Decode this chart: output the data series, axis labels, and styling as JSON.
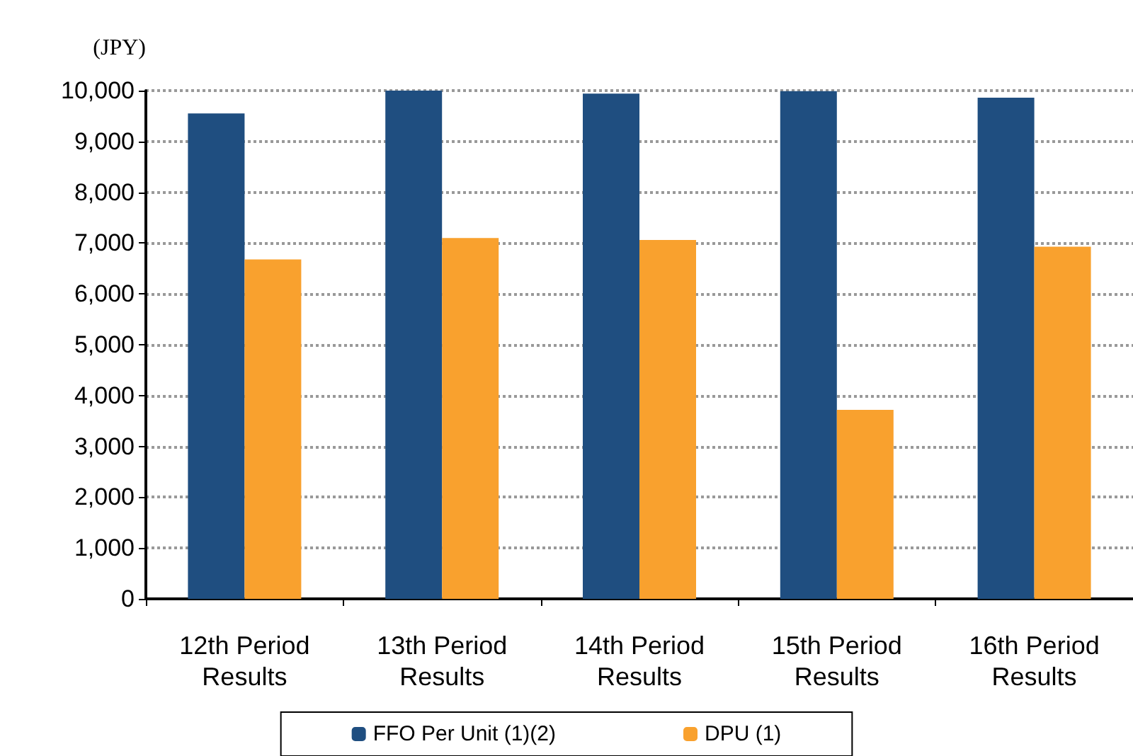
{
  "chart_data": {
    "type": "bar",
    "ylabel": "(JPY)",
    "categories": [
      "12th Period\nResults",
      "13th Period\nResults",
      "14th Period\nResults",
      "15th Period\nResults",
      "16th Period\nResults"
    ],
    "series": [
      {
        "name": "FFO Per Unit (1)(2)",
        "color": "#1f4e80",
        "values": [
          9550,
          10000,
          9940,
          9990,
          9860
        ]
      },
      {
        "name": "DPU (1)",
        "color": "#f9a12e",
        "values": [
          6680,
          7100,
          7060,
          3720,
          6930
        ]
      }
    ],
    "ylim": [
      0,
      10000
    ],
    "yticks": [
      0,
      {
        "value": 1000,
        "label": "1,000"
      },
      {
        "value": 2000,
        "label": "2,000"
      },
      {
        "value": 3000,
        "label": "3,000"
      },
      {
        "value": 4000,
        "label": "4,000"
      },
      {
        "value": 5000,
        "label": "5,000"
      },
      {
        "value": 6000,
        "label": "6,000"
      },
      {
        "value": 7000,
        "label": "7,000"
      },
      {
        "value": 8000,
        "label": "8,000"
      },
      {
        "value": 9000,
        "label": "9,000"
      },
      {
        "value": 10000,
        "label": "10,000"
      }
    ],
    "grid": "y",
    "legend": "bottom"
  }
}
